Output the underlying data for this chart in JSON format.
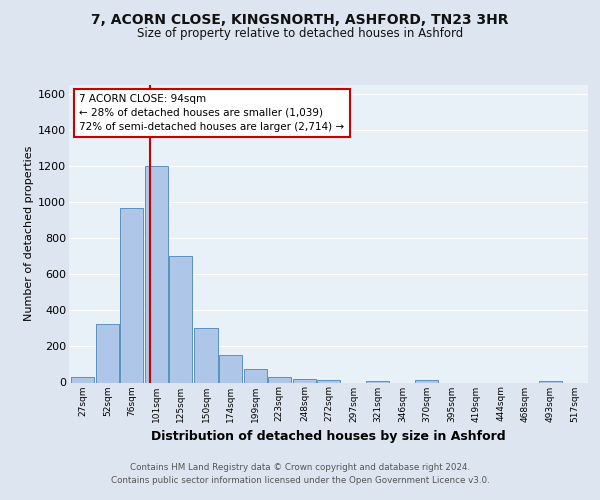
{
  "title_line1": "7, ACORN CLOSE, KINGSNORTH, ASHFORD, TN23 3HR",
  "title_line2": "Size of property relative to detached houses in Ashford",
  "xlabel": "Distribution of detached houses by size in Ashford",
  "ylabel": "Number of detached properties",
  "bar_labels": [
    "27sqm",
    "52sqm",
    "76sqm",
    "101sqm",
    "125sqm",
    "150sqm",
    "174sqm",
    "199sqm",
    "223sqm",
    "248sqm",
    "272sqm",
    "297sqm",
    "321sqm",
    "346sqm",
    "370sqm",
    "395sqm",
    "419sqm",
    "444sqm",
    "468sqm",
    "493sqm",
    "517sqm"
  ],
  "bar_positions": [
    27,
    52,
    76,
    101,
    125,
    150,
    174,
    199,
    223,
    248,
    272,
    297,
    321,
    346,
    370,
    395,
    419,
    444,
    468,
    493,
    517
  ],
  "bar_values": [
    28,
    325,
    970,
    1200,
    700,
    305,
    155,
    75,
    30,
    20,
    12,
    0,
    10,
    0,
    12,
    0,
    0,
    0,
    0,
    10,
    0
  ],
  "bar_color": "#aec6e8",
  "bar_edgecolor": "#5a90c0",
  "bar_linewidth": 0.7,
  "bg_color": "#dde6f0",
  "plot_bg_color": "#e8f0f8",
  "grid_color": "#ffffff",
  "vline_x": 94,
  "vline_color": "#cc0000",
  "annotation_text": "7 ACORN CLOSE: 94sqm\n← 28% of detached houses are smaller (1,039)\n72% of semi-detached houses are larger (2,714) →",
  "annotation_box_facecolor": "#ffffff",
  "annotation_box_edgecolor": "#cc0000",
  "ylim": [
    0,
    1650
  ],
  "yticks": [
    0,
    200,
    400,
    600,
    800,
    1000,
    1200,
    1400,
    1600
  ],
  "footer_line1": "Contains HM Land Registry data © Crown copyright and database right 2024.",
  "footer_line2": "Contains public sector information licensed under the Open Government Licence v3.0.",
  "bin_width": 23
}
